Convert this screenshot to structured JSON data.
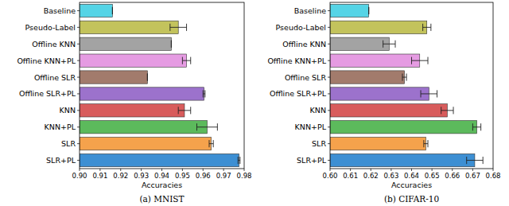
{
  "chart_data": [
    {
      "type": "bar",
      "orientation": "horizontal",
      "title": "(a) MNIST",
      "xlabel": "Accuracies",
      "categories": [
        "Baseline",
        "Pseudo-Label",
        "Offline KNN",
        "Offline KNN+PL",
        "Offline SLR",
        "Offline SLR+PL",
        "KNN",
        "KNN+PL",
        "SLR",
        "SLR+PL"
      ],
      "values": [
        0.916,
        0.948,
        0.9446,
        0.952,
        0.933,
        0.9605,
        0.951,
        0.962,
        0.964,
        0.9775
      ],
      "errors": [
        0,
        0.004,
        0,
        0.002,
        0,
        0.0005,
        0.003,
        0.005,
        0.001,
        0.0005
      ],
      "colors": [
        "#55d4e6",
        "#c3c35c",
        "#a3a3a3",
        "#e59be2",
        "#a27b6c",
        "#9c72cc",
        "#d85c5c",
        "#5cba5c",
        "#f5a24c",
        "#3d8fd3"
      ],
      "xlim": [
        0.9,
        0.98
      ],
      "xticks": [
        {
          "value": 0.9,
          "label": "0.90"
        },
        0.91,
        0.92,
        0.93,
        0.94,
        0.95,
        0.96,
        0.97,
        0.98
      ],
      "grid": false
    },
    {
      "type": "bar",
      "orientation": "horizontal",
      "title": "(b) CIFAR-10",
      "xlabel": "Accuracies",
      "categories": [
        "Baseline",
        "Pseudo-Label",
        "Offline KNN",
        "Offline KNN+PL",
        "Offline SLR",
        "Offline SLR+PL",
        "KNN",
        "KNN+PL",
        "SLR",
        "SLR+PL"
      ],
      "values": [
        0.619,
        0.6475,
        0.629,
        0.644,
        0.6365,
        0.6485,
        0.6575,
        0.672,
        0.647,
        0.671
      ],
      "errors": [
        0,
        0.002,
        0.003,
        0.004,
        0.001,
        0.004,
        0.003,
        0.002,
        0.001,
        0.004
      ],
      "colors": [
        "#55d4e6",
        "#c3c35c",
        "#a3a3a3",
        "#e59be2",
        "#a27b6c",
        "#9c72cc",
        "#d85c5c",
        "#5cba5c",
        "#f5a24c",
        "#3d8fd3"
      ],
      "xlim": [
        0.6,
        0.68
      ],
      "xticks": [
        {
          "value": 0.6,
          "label": "0.60"
        },
        0.61,
        0.62,
        0.63,
        0.64,
        0.65,
        0.66,
        0.67,
        0.68
      ],
      "grid": false
    }
  ]
}
